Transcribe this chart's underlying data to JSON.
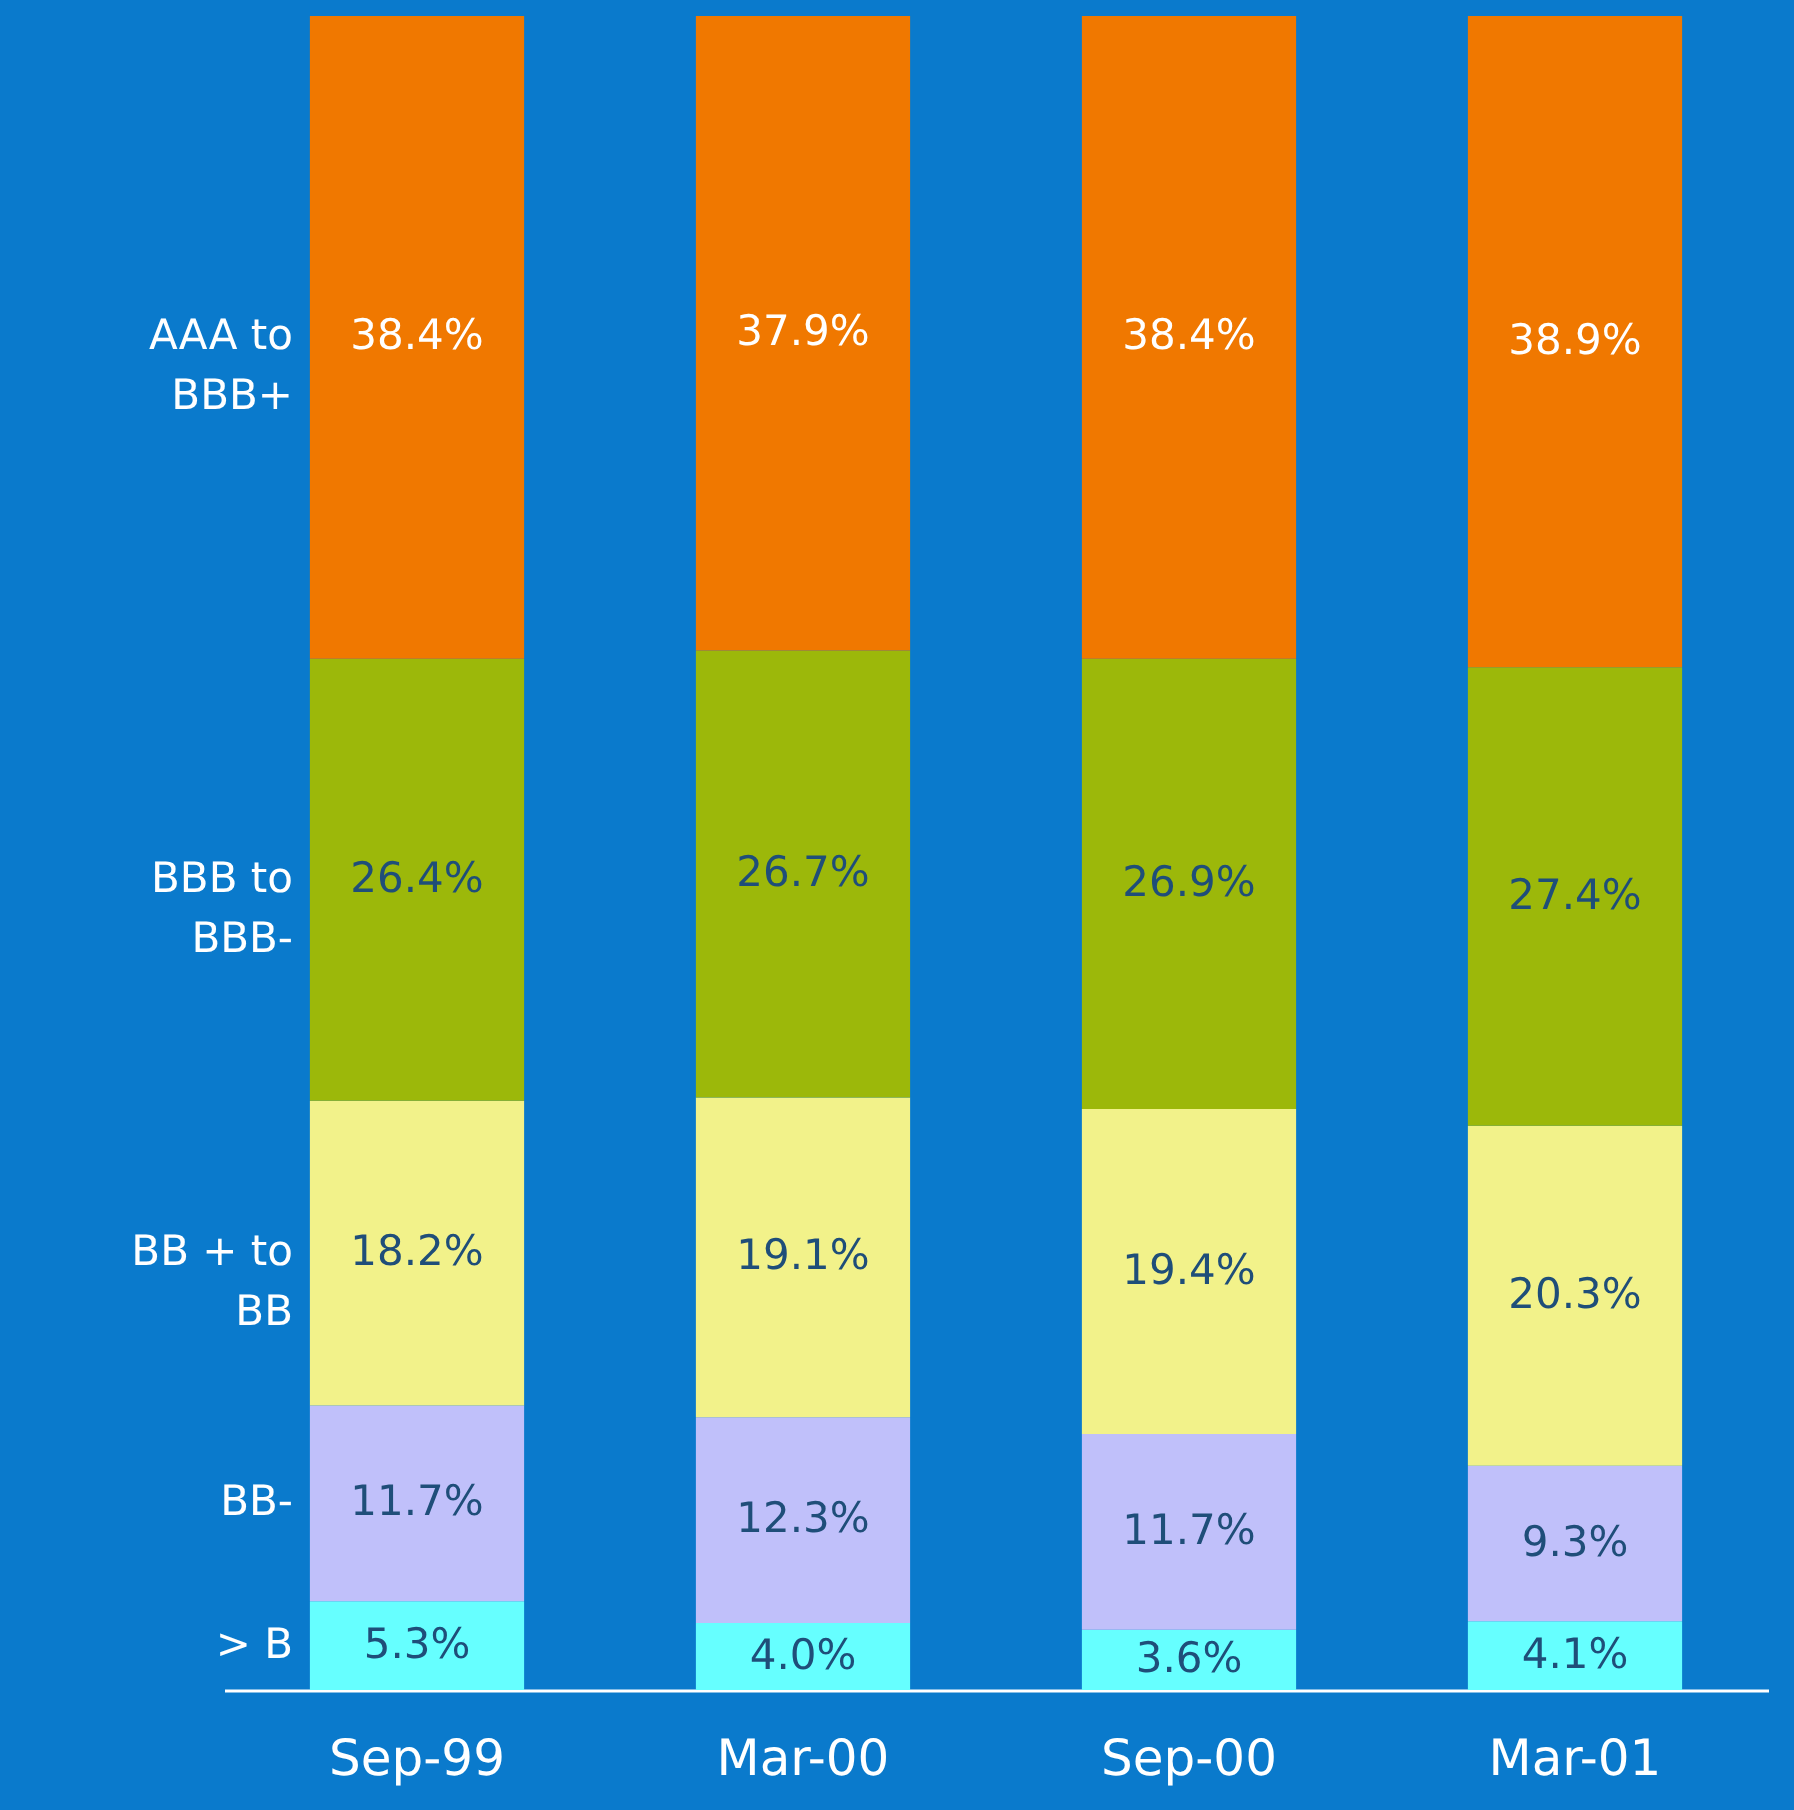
{
  "chart_data": {
    "type": "bar",
    "stacked": true,
    "categories": [
      "Sep-99",
      "Mar-00",
      "Sep-00",
      "Mar-01"
    ],
    "ylim": [
      0,
      100
    ],
    "tick_labels": "x",
    "grid": false,
    "series": [
      {
        "name": "> B",
        "color": "#66ffff",
        "values": [
          5.3,
          4.0,
          3.6,
          4.1
        ],
        "value_labels": [
          "5.3%",
          "4.0%",
          "3.6%",
          "4.1%"
        ]
      },
      {
        "name": "BB-",
        "color": "#c0c0fa",
        "values": [
          11.7,
          12.3,
          11.7,
          9.3
        ],
        "value_labels": [
          "11.7%",
          "12.3%",
          "11.7%",
          "9.3%"
        ]
      },
      {
        "name": "BB + to BB",
        "color": "#f2f28a",
        "values": [
          18.2,
          19.1,
          19.4,
          20.3
        ],
        "value_labels": [
          "18.2%",
          "19.1%",
          "19.4%",
          "20.3%"
        ]
      },
      {
        "name": "BBB to BBB-",
        "color": "#9cb80a",
        "values": [
          26.4,
          26.7,
          26.9,
          27.4
        ],
        "value_labels": [
          "26.4%",
          "26.7%",
          "26.9%",
          "27.4%"
        ]
      },
      {
        "name": "AAA to BBB+",
        "color": "#f07800",
        "values": [
          38.4,
          37.9,
          38.4,
          38.9
        ],
        "value_labels": [
          "38.4%",
          "37.9%",
          "38.4%",
          "38.9%"
        ]
      }
    ]
  }
}
